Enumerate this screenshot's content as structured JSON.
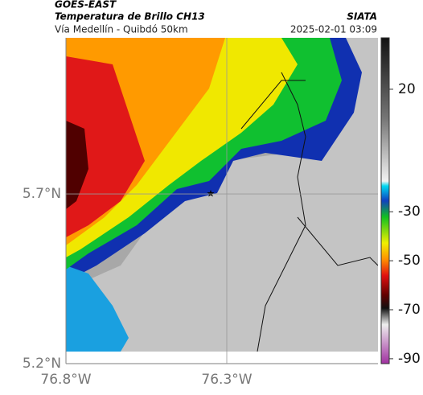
{
  "header": {
    "source": "GOES-EAST",
    "title": "Temperatura de Brillo CH13",
    "subtitle": "Vía Medellín - Quibdó 50km",
    "brand": "SIATA",
    "datetime": "2025-02-01 03:09"
  },
  "map": {
    "xlim": [
      -76.8,
      -75.83
    ],
    "ylim": [
      5.2,
      6.16
    ],
    "xticks": [
      {
        "value": -76.8,
        "label": "76.8°W"
      },
      {
        "value": -76.3,
        "label": "76.3°W"
      }
    ],
    "yticks": [
      {
        "value": 5.7,
        "label": "5.7°N"
      },
      {
        "value": 5.2,
        "label": "5.2°N"
      }
    ]
  },
  "colorbar": {
    "lim": [
      -92,
      41
    ],
    "ticks": [
      20,
      -30,
      -50,
      -70,
      -90
    ]
  }
}
